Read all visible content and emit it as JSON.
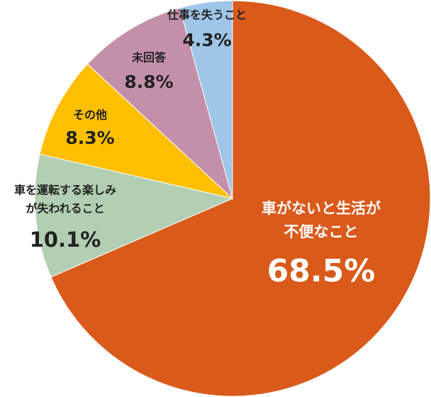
{
  "chart_data": {
    "type": "pie",
    "categories": [
      [
        "車がないと生活が",
        "不便なこと"
      ],
      [
        "車を運転する楽しみ",
        "が失われること"
      ],
      [
        "その他"
      ],
      [
        "未回答"
      ],
      [
        "仕事を失うこと"
      ]
    ],
    "values": [
      68.5,
      10.1,
      8.3,
      8.8,
      4.3
    ],
    "value_labels": [
      "68.5%",
      "10.1%",
      "8.3%",
      "8.8%",
      "4.3%"
    ],
    "colors": [
      "#d95a1a",
      "#b2cfb3",
      "#fdbf00",
      "#c490a9",
      "#9fc5e8"
    ]
  }
}
